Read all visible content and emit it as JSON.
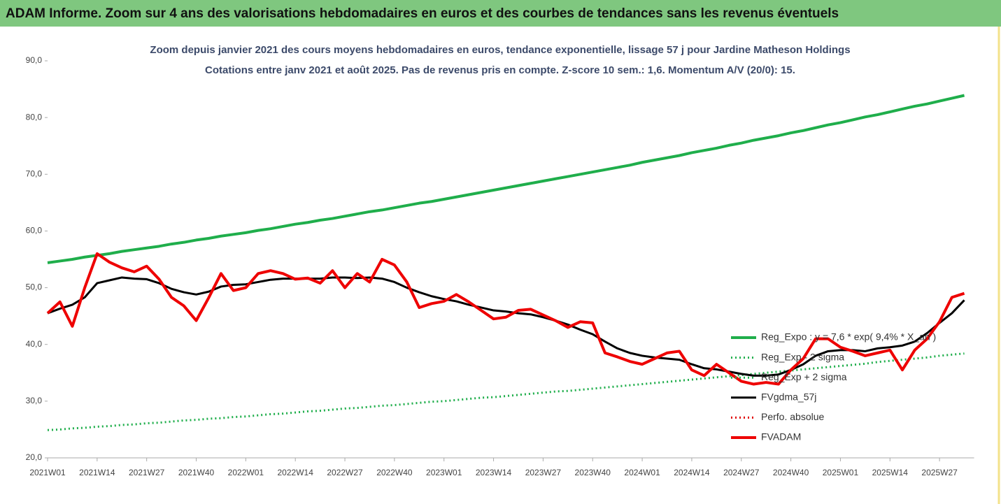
{
  "chart_data": {
    "type": "line",
    "title": "ADAM Informe. Zoom sur 4 ans des valorisations hebdomadaires en euros et des courbes de tendances sans les revenus éventuels",
    "subtitle": [
      "Zoom depuis janvier 2021 des cours moyens hebdomadaires en euros, tendance exponentielle, lissage 57 j pour Jardine Matheson Holdings",
      "Cotations entre janv 2021 et août 2025.  Pas de revenus pris en compte. Z-score 10 sem.: 1,6. Momentum A/V (20/0): 15."
    ],
    "categories": [
      "2021W01",
      null,
      null,
      null,
      "2021W14",
      null,
      null,
      null,
      "2021W27",
      null,
      null,
      null,
      "2021W40",
      null,
      null,
      null,
      "2022W01",
      null,
      null,
      null,
      "2022W14",
      null,
      null,
      null,
      "2022W27",
      null,
      null,
      null,
      "2022W40",
      null,
      null,
      null,
      "2023W01",
      null,
      null,
      null,
      "2023W14",
      null,
      null,
      null,
      "2023W27",
      null,
      null,
      null,
      "2023W40",
      null,
      null,
      null,
      "2024W01",
      null,
      null,
      null,
      "2024W14",
      null,
      null,
      null,
      "2024W27",
      null,
      null,
      null,
      "2024W40",
      null,
      null,
      null,
      "2025W01",
      null,
      null,
      null,
      "2025W14",
      null,
      null,
      null,
      "2025W27",
      null,
      null
    ],
    "ylim": [
      20,
      90
    ],
    "yticks": [
      {
        "value": 20,
        "label": "20,0"
      },
      {
        "value": 30,
        "label": "30,0"
      },
      {
        "value": 40,
        "label": "40,0"
      },
      {
        "value": 50,
        "label": "50,0"
      },
      {
        "value": 60,
        "label": "60,0"
      },
      {
        "value": 70,
        "label": "70,0"
      },
      {
        "value": 80,
        "label": "80,0"
      },
      {
        "value": 90,
        "label": "90,0"
      }
    ],
    "grid": false,
    "series": [
      {
        "name": "Reg_Expo : y = 7,6 * exp( 9,4% * X_an )",
        "color": "#1fae4b",
        "dash": false,
        "width": 4,
        "values": [
          54.4,
          54.7,
          55.0,
          55.4,
          55.7,
          56.0,
          56.4,
          56.7,
          57.0,
          57.3,
          57.7,
          58.0,
          58.4,
          58.7,
          59.1,
          59.4,
          59.7,
          60.1,
          60.4,
          60.8,
          61.2,
          61.5,
          61.9,
          62.2,
          62.6,
          63.0,
          63.4,
          63.7,
          64.1,
          64.5,
          64.9,
          65.2,
          65.6,
          66.0,
          66.4,
          66.8,
          67.2,
          67.6,
          68.0,
          68.4,
          68.8,
          69.2,
          69.6,
          70.0,
          70.4,
          70.8,
          71.2,
          71.6,
          72.1,
          72.5,
          72.9,
          73.3,
          73.8,
          74.2,
          74.6,
          75.1,
          75.5,
          76.0,
          76.4,
          76.8,
          77.3,
          77.7,
          78.2,
          78.7,
          79.1,
          79.6,
          80.1,
          80.5,
          81.0,
          81.5,
          82.0,
          82.4,
          82.9,
          83.4,
          83.9
        ]
      },
      {
        "name": "Reg_Exp - 2 sigma",
        "color": "#1fae4b",
        "dash": true,
        "width": 3,
        "values": [
          24.9,
          25.0,
          25.2,
          25.3,
          25.5,
          25.6,
          25.8,
          25.9,
          26.1,
          26.2,
          26.4,
          26.6,
          26.7,
          26.9,
          27.0,
          27.2,
          27.3,
          27.5,
          27.7,
          27.8,
          28.0,
          28.2,
          28.3,
          28.5,
          28.7,
          28.8,
          29.0,
          29.2,
          29.3,
          29.5,
          29.7,
          29.9,
          30.0,
          30.2,
          30.4,
          30.6,
          30.7,
          30.9,
          31.1,
          31.3,
          31.5,
          31.7,
          31.8,
          32.0,
          32.2,
          32.4,
          32.6,
          32.8,
          33.0,
          33.2,
          33.4,
          33.6,
          33.8,
          34.0,
          34.2,
          34.4,
          34.6,
          34.8,
          35.0,
          35.2,
          35.4,
          35.6,
          35.8,
          36.0,
          36.2,
          36.4,
          36.6,
          36.9,
          37.1,
          37.3,
          37.5,
          37.7,
          38.0,
          38.2,
          38.4
        ]
      },
      {
        "name": "Reg_Exp + 2 sigma",
        "color": "#1fae4b",
        "dash": true,
        "width": 3
      },
      {
        "name": "FVgdma_57j",
        "color": "#000000",
        "dash": false,
        "width": 3,
        "values": [
          45.5,
          46.3,
          47.0,
          48.3,
          50.8,
          51.3,
          51.8,
          51.6,
          51.5,
          50.8,
          49.8,
          49.2,
          48.8,
          49.3,
          50.2,
          50.5,
          50.6,
          51.0,
          51.4,
          51.6,
          51.6,
          51.6,
          51.6,
          51.8,
          51.8,
          51.7,
          51.8,
          51.6,
          51.0,
          50.0,
          49.2,
          48.5,
          48.0,
          47.6,
          47.0,
          46.5,
          46.0,
          45.8,
          45.5,
          45.3,
          44.8,
          44.2,
          43.5,
          42.6,
          41.8,
          40.5,
          39.3,
          38.5,
          38.0,
          37.7,
          37.5,
          37.3,
          36.5,
          35.8,
          35.6,
          35.2,
          34.8,
          34.5,
          34.5,
          34.7,
          35.5,
          36.5,
          38.0,
          38.8,
          39.0,
          39.0,
          38.8,
          39.3,
          39.5,
          39.8,
          40.5,
          42.0,
          43.8,
          45.5,
          47.8
        ]
      },
      {
        "name": "Perfo. absolue",
        "color": "#e00000",
        "dash": true,
        "width": 3
      },
      {
        "name": "FVADAM",
        "color": "#ee0000",
        "dash": false,
        "width": 4,
        "values": [
          45.5,
          47.5,
          43.2,
          50.0,
          56.0,
          54.5,
          53.5,
          52.8,
          53.8,
          51.5,
          48.3,
          46.8,
          44.2,
          48.2,
          52.5,
          49.5,
          50.0,
          52.5,
          53.0,
          52.5,
          51.5,
          51.7,
          50.8,
          53.0,
          50.0,
          52.5,
          51.0,
          55.0,
          54.0,
          51.0,
          46.5,
          47.2,
          47.6,
          48.8,
          47.5,
          46.0,
          44.5,
          44.8,
          46.0,
          46.2,
          45.2,
          44.2,
          43.0,
          44.0,
          43.8,
          38.5,
          37.8,
          37.0,
          36.5,
          37.5,
          38.5,
          38.8,
          35.5,
          34.5,
          36.5,
          35.0,
          33.5,
          33.0,
          33.3,
          33.0,
          35.5,
          37.5,
          41.0,
          41.0,
          39.5,
          38.8,
          38.0,
          38.5,
          39.0,
          35.5,
          39.0,
          41.0,
          44.0,
          48.3,
          49.0
        ]
      }
    ]
  }
}
